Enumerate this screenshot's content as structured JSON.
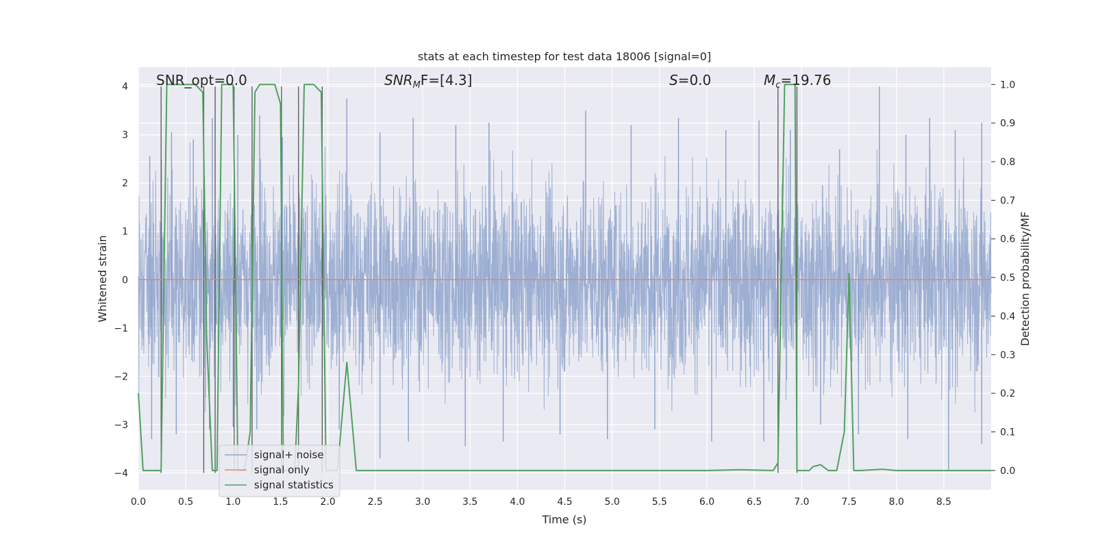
{
  "chart_data": {
    "type": "line",
    "title": "stats at each timestep for test data 18006 [signal=0]",
    "xlabel": "Time (s)",
    "ylabel_left": "Whitened strain",
    "ylabel_right": "Detection probability/MF",
    "xlim": [
      0.0,
      9.0
    ],
    "ylim_left": [
      -4.35,
      4.4
    ],
    "ylim_right": [
      -0.05,
      1.045
    ],
    "xticks": [
      "0.0",
      "0.5",
      "1.0",
      "1.5",
      "2.0",
      "2.5",
      "3.0",
      "3.5",
      "4.0",
      "4.5",
      "5.0",
      "5.5",
      "6.0",
      "6.5",
      "7.0",
      "7.5",
      "8.0",
      "8.5"
    ],
    "yticks_left": [
      "4",
      "3",
      "2",
      "1",
      "0",
      "−1",
      "−2",
      "−3",
      "−4"
    ],
    "yticks_right": [
      "1.0",
      "0.9",
      "0.8",
      "0.7",
      "0.6",
      "0.5",
      "0.4",
      "0.3",
      "0.2",
      "0.1",
      "0.0"
    ],
    "grid": true,
    "legend_position": "lower-left",
    "annotations": {
      "snr_opt": "SNR_opt=0.0",
      "snr_mf": "SNR",
      "snr_mf_sub": "M",
      "snr_mf_tail": "F=[4.3]",
      "s_label": "S",
      "s_value": "=0.0",
      "mc_label": "M",
      "mc_sub": "c",
      "mc_value": "=19.76"
    },
    "series": [
      {
        "name": "signal+ noise",
        "color": "#8fa4cc",
        "noise_rms": 1.0,
        "noise_range": [
          -4.0,
          4.0
        ],
        "peaks_max": [
          [
            0.12,
            2.56
          ],
          [
            0.35,
            3.05
          ],
          [
            0.58,
            2.9
          ],
          [
            0.78,
            3.35
          ],
          [
            1.05,
            3.0
          ],
          [
            1.28,
            3.4
          ],
          [
            1.52,
            2.95
          ],
          [
            2.2,
            3.75
          ],
          [
            2.55,
            3.05
          ],
          [
            2.9,
            3.35
          ],
          [
            3.35,
            3.2
          ],
          [
            3.7,
            3.25
          ],
          [
            4.72,
            3.5
          ],
          [
            5.2,
            3.2
          ],
          [
            5.7,
            3.35
          ],
          [
            6.2,
            3.1
          ],
          [
            6.55,
            3.3
          ],
          [
            6.88,
            3.1
          ],
          [
            7.4,
            2.7
          ],
          [
            7.82,
            4.0
          ],
          [
            8.1,
            3.0
          ],
          [
            8.35,
            3.35
          ],
          [
            8.62,
            3.1
          ],
          [
            8.9,
            3.25
          ]
        ],
        "peaks_min": [
          [
            0.14,
            -3.3
          ],
          [
            0.4,
            -3.2
          ],
          [
            0.75,
            -3.1
          ],
          [
            1.0,
            -3.05
          ],
          [
            1.25,
            -3.1
          ],
          [
            2.12,
            -3.1
          ],
          [
            2.55,
            -3.7
          ],
          [
            2.85,
            -3.35
          ],
          [
            3.45,
            -3.45
          ],
          [
            3.85,
            -3.35
          ],
          [
            4.45,
            -3.2
          ],
          [
            4.95,
            -3.3
          ],
          [
            5.45,
            -3.1
          ],
          [
            6.05,
            -3.35
          ],
          [
            6.6,
            -3.35
          ],
          [
            7.2,
            -3.0
          ],
          [
            7.6,
            -3.2
          ],
          [
            8.12,
            -3.3
          ],
          [
            8.55,
            -3.95
          ],
          [
            8.9,
            -3.4
          ]
        ]
      },
      {
        "name": "signal only",
        "color": "#e8846f",
        "values": [
          [
            0.0,
            0.0
          ],
          [
            9.0,
            0.0
          ]
        ]
      },
      {
        "name": "signal statistics",
        "color": "#4fa15e",
        "values": [
          [
            0.0,
            0.2
          ],
          [
            0.05,
            0.0
          ],
          [
            0.15,
            0.0
          ],
          [
            0.24,
            0.0
          ],
          [
            0.3,
            1.0
          ],
          [
            0.6,
            1.0
          ],
          [
            0.68,
            0.98
          ],
          [
            0.72,
            0.35
          ],
          [
            0.78,
            0.0
          ],
          [
            0.83,
            0.0
          ],
          [
            0.88,
            1.0
          ],
          [
            1.0,
            1.0
          ],
          [
            1.05,
            0.0
          ],
          [
            1.12,
            0.0
          ],
          [
            1.18,
            0.1
          ],
          [
            1.23,
            0.98
          ],
          [
            1.28,
            1.0
          ],
          [
            1.44,
            1.0
          ],
          [
            1.5,
            0.95
          ],
          [
            1.53,
            0.0
          ],
          [
            1.65,
            0.0
          ],
          [
            1.69,
            0.22
          ],
          [
            1.75,
            1.0
          ],
          [
            1.85,
            1.0
          ],
          [
            1.93,
            0.98
          ],
          [
            1.98,
            0.0
          ],
          [
            2.1,
            0.0
          ],
          [
            2.2,
            0.28
          ],
          [
            2.3,
            0.0
          ],
          [
            2.7,
            0.0
          ],
          [
            4.5,
            0.0
          ],
          [
            6.0,
            0.0
          ],
          [
            6.35,
            0.002
          ],
          [
            6.7,
            0.0
          ],
          [
            6.75,
            0.02
          ],
          [
            6.82,
            1.0
          ],
          [
            6.93,
            1.0
          ],
          [
            6.95,
            0.0
          ],
          [
            7.0,
            0.0
          ],
          [
            7.08,
            0.0
          ],
          [
            7.12,
            0.01
          ],
          [
            7.2,
            0.015
          ],
          [
            7.28,
            0.0
          ],
          [
            7.37,
            0.0
          ],
          [
            7.45,
            0.1
          ],
          [
            7.5,
            0.51
          ],
          [
            7.55,
            0.0
          ],
          [
            7.62,
            0.0
          ],
          [
            7.85,
            0.003
          ],
          [
            8.0,
            0.0
          ],
          [
            9.0,
            0.0
          ]
        ]
      }
    ],
    "vertical_markers": [
      0.24,
      0.69,
      0.81,
      1.01,
      1.2,
      1.51,
      1.69,
      1.94,
      6.75,
      6.95
    ]
  }
}
